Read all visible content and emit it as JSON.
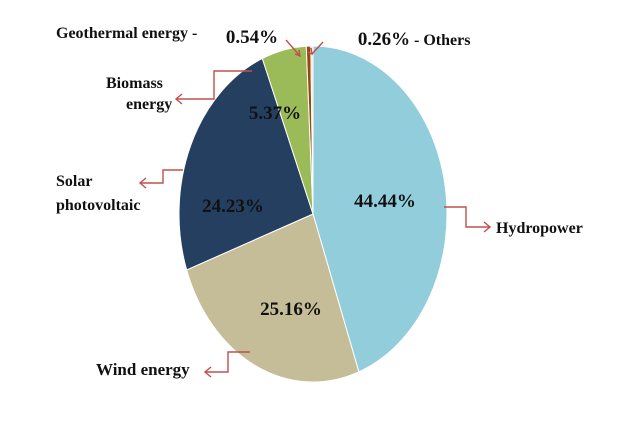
{
  "chart_data": {
    "type": "pie",
    "title": "",
    "slices": [
      {
        "label": "Hydropower",
        "value": 44.44,
        "value_label": "44.44%",
        "color": "#92cddc"
      },
      {
        "label": "Wind energy",
        "value": 25.16,
        "value_label": "25.16%",
        "color": "#c4bd97"
      },
      {
        "label": "Solar photovoltaic",
        "value": 24.23,
        "value_label": "24.23%",
        "color": "#243f60"
      },
      {
        "label": "Biomass energy",
        "value": 5.37,
        "value_label": "5.37%",
        "color": "#9bbb59"
      },
      {
        "label": "Geothermal energy -",
        "value": 0.54,
        "value_label": "0.54%",
        "color": "#984807"
      },
      {
        "label": "- Others",
        "value": 0.26,
        "value_label": "0.26%",
        "color": "#f2dcdb"
      }
    ],
    "leader_color": "#c0504d"
  }
}
